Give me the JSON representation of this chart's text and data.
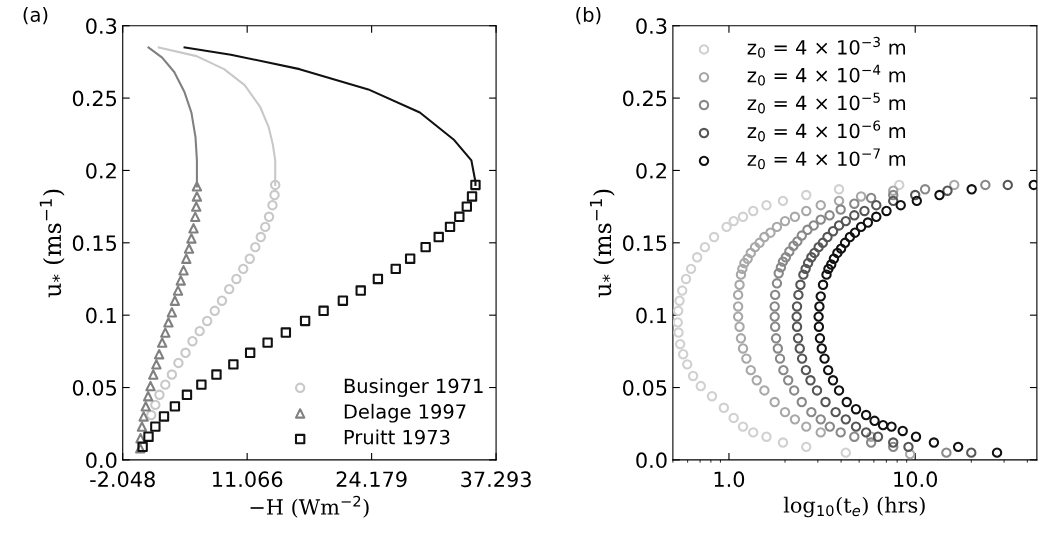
{
  "chart_data": [
    {
      "type": "scatter",
      "annotations": [
        "(a)"
      ],
      "xlabel": "−H (Wm$^{−2}$)",
      "ylabel": "u$_{*}$ (ms$^{−1}$)",
      "xlim": [
        -2.048,
        37.293
      ],
      "xticks": [
        -2.048,
        11.066,
        24.179,
        37.293
      ],
      "ylim": [
        0,
        0.3
      ],
      "yticks": [
        {
          "value": 0,
          "label": "0.0"
        },
        0.05,
        0.1,
        0.15,
        0.2,
        0.25,
        0.3
      ],
      "grid": false,
      "legend": "bottom right",
      "series": [
        {
          "name": "Businger 1971",
          "color": "#c8c8c8",
          "marker": "circle",
          "x": [
            14.02,
            13.95,
            13.73,
            13.37,
            12.97,
            12.5,
            11.92,
            11.34,
            10.65,
            9.93,
            9.17,
            8.41,
            7.65,
            6.85,
            6.06,
            5.3,
            4.57,
            3.82,
            3.13,
            2.44,
            1.82,
            1.39,
            0.96
          ],
          "values": [
            0.19,
            0.183,
            0.176,
            0.168,
            0.161,
            0.154,
            0.147,
            0.139,
            0.132,
            0.125,
            0.118,
            0.11,
            0.103,
            0.096,
            0.089,
            0.082,
            0.074,
            0.067,
            0.059,
            0.052,
            0.045,
            0.038,
            0.031
          ]
        },
        {
          "name": "Delage 1997",
          "color": "#808080",
          "marker": "triangle",
          "x": [
            5.77,
            5.77,
            5.7,
            5.59,
            5.41,
            5.19,
            4.94,
            4.65,
            4.36,
            4.07,
            3.78,
            3.45,
            3.13,
            2.77,
            2.44,
            2.11,
            1.79,
            1.5,
            1.17,
            0.88,
            0.63,
            0.38,
            0.16,
            -0.02,
            -0.17,
            -0.2
          ],
          "values": [
            0.189,
            0.182,
            0.175,
            0.168,
            0.16,
            0.153,
            0.146,
            0.139,
            0.131,
            0.124,
            0.117,
            0.11,
            0.102,
            0.095,
            0.088,
            0.081,
            0.073,
            0.066,
            0.059,
            0.051,
            0.044,
            0.037,
            0.03,
            0.023,
            0.015,
            0.008
          ]
        },
        {
          "name": "Pruitt 1973",
          "color": "#111111",
          "marker": "square",
          "x": [
            35.12,
            34.76,
            34.21,
            33.42,
            32.44,
            31.25,
            29.87,
            28.24,
            26.72,
            24.84,
            23.03,
            21.15,
            19.12,
            17.17,
            15.14,
            13.22,
            11.38,
            9.61,
            7.83,
            6.24,
            4.72,
            3.45,
            2.3,
            1.39,
            0.67,
            0.05
          ],
          "values": [
            0.19,
            0.182,
            0.175,
            0.168,
            0.161,
            0.154,
            0.147,
            0.139,
            0.132,
            0.125,
            0.117,
            0.11,
            0.103,
            0.096,
            0.088,
            0.081,
            0.074,
            0.066,
            0.059,
            0.052,
            0.045,
            0.037,
            0.03,
            0.023,
            0.016,
            0.009
          ]
        },
        {
          "type": "line",
          "color": "#c8c8c8",
          "marker": "none",
          "x": [
            14.02,
            14.02,
            13.77,
            13.33,
            12.43,
            10.8,
            8.63,
            5.73,
            1.75
          ],
          "values": [
            0.19,
            0.207,
            0.218,
            0.23,
            0.244,
            0.259,
            0.27,
            0.279,
            0.285
          ]
        },
        {
          "type": "line",
          "color": "#808080",
          "marker": "none",
          "x": [
            5.77,
            5.77,
            5.62,
            5.19,
            4.47,
            3.38,
            2.11,
            0.67
          ],
          "values": [
            0.189,
            0.207,
            0.223,
            0.24,
            0.254,
            0.268,
            0.278,
            0.285
          ]
        },
        {
          "type": "line",
          "color": "#111111",
          "marker": "none",
          "x": [
            35.12,
            35.12,
            34.69,
            32.88,
            29.26,
            23.83,
            16.59,
            9.35,
            4.47
          ],
          "values": [
            0.19,
            0.192,
            0.207,
            0.221,
            0.24,
            0.256,
            0.27,
            0.28,
            0.285
          ]
        }
      ]
    },
    {
      "type": "scatter",
      "annotations": [
        "(b)"
      ],
      "xlabel": "log$_{10}$(t$_{e}$) (hrs)",
      "ylabel": "u$_{*}$ (ms$^{−1}$)",
      "log": "x",
      "xlim": [
        0.5,
        45
      ],
      "xticks": [
        {
          "value": 1,
          "label": "1.0"
        },
        {
          "value": 10,
          "label": "10.0"
        }
      ],
      "ylim": [
        0,
        0.3
      ],
      "yticks": [
        {
          "value": 0,
          "label": "0.0"
        },
        0.05,
        0.1,
        0.15,
        0.2,
        0.25,
        0.3
      ],
      "grid": false,
      "legend": "top left",
      "marker": "circle",
      "series": [
        {
          "name": "z$_{0}$ = 4 × 10$^{−3}$ m",
          "color": "#d0d0d0",
          "x": [
            8.21,
            3.9,
            2.6,
            1.95,
            1.59,
            1.35,
            1.19,
            1.06,
            0.971,
            0.832,
            0.743,
            0.675,
            0.626,
            0.588,
            0.561,
            0.543,
            0.534,
            0.531,
            0.536,
            0.547,
            0.568,
            0.597,
            0.642,
            0.706,
            0.811,
            0.939,
            1.06,
            1.19,
            1.35,
            1.59,
            1.95,
            2.6,
            4.24
          ],
          "values": [
            0.19,
            0.187,
            0.183,
            0.179,
            0.176,
            0.172,
            0.168,
            0.165,
            0.161,
            0.154,
            0.147,
            0.14,
            0.132,
            0.125,
            0.117,
            0.11,
            0.103,
            0.095,
            0.088,
            0.08,
            0.073,
            0.066,
            0.058,
            0.051,
            0.044,
            0.036,
            0.029,
            0.023,
            0.019,
            0.016,
            0.012,
            0.009,
            0.005
          ]
        },
        {
          "name": "z$_{0}$ = 4 × 10$^{−4}$ m",
          "color": "#a8a8a8",
          "x": [
            16.2,
            7.62,
            5.12,
            3.9,
            3.11,
            2.6,
            2.26,
            2.0,
            1.81,
            1.67,
            1.55,
            1.46,
            1.38,
            1.31,
            1.26,
            1.21,
            1.18,
            1.16,
            1.14,
            1.12,
            1.12,
            1.12,
            1.14,
            1.16,
            1.19,
            1.24,
            1.31,
            1.41,
            1.55,
            1.76,
            2.0,
            2.26,
            2.6,
            3.11,
            5.8,
            9.39
          ],
          "values": [
            0.19,
            0.186,
            0.182,
            0.179,
            0.176,
            0.172,
            0.168,
            0.165,
            0.161,
            0.157,
            0.154,
            0.15,
            0.147,
            0.143,
            0.139,
            0.136,
            0.132,
            0.128,
            0.121,
            0.114,
            0.106,
            0.099,
            0.092,
            0.084,
            0.077,
            0.07,
            0.062,
            0.055,
            0.048,
            0.04,
            0.033,
            0.028,
            0.023,
            0.019,
            0.016,
            0.004
          ]
        },
        {
          "name": "z$_{0}$ = 4 × 10$^{−5}$ m",
          "color": "#888888",
          "x": [
            23.8,
            11.3,
            7.62,
            5.8,
            4.71,
            3.98,
            3.47,
            3.11,
            2.85,
            2.64,
            2.46,
            2.33,
            2.22,
            2.11,
            2.02,
            1.95,
            1.9,
            1.85,
            1.81,
            1.77,
            1.76,
            1.76,
            1.77,
            1.79,
            1.83,
            1.88,
            1.96,
            2.08,
            2.24,
            2.46,
            2.77,
            3.11,
            3.48,
            3.98,
            4.71,
            5.8,
            7.62,
            14.7
          ],
          "values": [
            0.19,
            0.187,
            0.183,
            0.181,
            0.177,
            0.173,
            0.169,
            0.166,
            0.162,
            0.159,
            0.155,
            0.151,
            0.148,
            0.144,
            0.14,
            0.137,
            0.133,
            0.129,
            0.122,
            0.114,
            0.106,
            0.099,
            0.092,
            0.084,
            0.077,
            0.07,
            0.062,
            0.055,
            0.048,
            0.04,
            0.033,
            0.028,
            0.023,
            0.019,
            0.016,
            0.012,
            0.009,
            0.005
          ]
        },
        {
          "name": "z$_{0}$ = 4 × 10$^{−6}$ m",
          "color": "#555555",
          "x": [
            31.4,
            14.9,
            10.0,
            7.62,
            6.18,
            5.34,
            4.71,
            4.24,
            3.9,
            3.62,
            3.38,
            3.19,
            3.03,
            2.88,
            2.77,
            2.66,
            2.58,
            2.51,
            2.42,
            2.36,
            2.32,
            2.31,
            2.32,
            2.35,
            2.4,
            2.47,
            2.59,
            2.74,
            2.97,
            3.3,
            3.74,
            4.24,
            4.81,
            5.45,
            6.31,
            7.62,
            9.2,
            20.0
          ],
          "values": [
            0.19,
            0.186,
            0.183,
            0.179,
            0.176,
            0.172,
            0.169,
            0.165,
            0.162,
            0.158,
            0.154,
            0.15,
            0.147,
            0.143,
            0.14,
            0.136,
            0.132,
            0.128,
            0.121,
            0.114,
            0.106,
            0.099,
            0.092,
            0.084,
            0.077,
            0.07,
            0.062,
            0.055,
            0.048,
            0.04,
            0.033,
            0.028,
            0.023,
            0.019,
            0.016,
            0.012,
            0.009,
            0.005
          ]
        },
        {
          "name": "z$_{0}$ = 4 × 10$^{−7}$ m",
          "color": "#111111",
          "x": [
            43.3,
            20.1,
            13.5,
            10.2,
            8.36,
            7.01,
            6.18,
            5.57,
            5.12,
            4.75,
            4.46,
            4.2,
            4.0,
            3.82,
            3.66,
            3.54,
            3.42,
            3.34,
            3.2,
            3.11,
            3.06,
            3.03,
            3.04,
            3.08,
            3.15,
            3.26,
            3.41,
            3.62,
            3.9,
            4.29,
            4.81,
            5.45,
            6.05,
            6.72,
            7.46,
            8.57,
            10.1,
            12.6,
            17.0,
            27.5
          ],
          "values": [
            0.19,
            0.187,
            0.183,
            0.179,
            0.176,
            0.172,
            0.168,
            0.164,
            0.161,
            0.157,
            0.154,
            0.15,
            0.146,
            0.143,
            0.139,
            0.135,
            0.132,
            0.128,
            0.121,
            0.113,
            0.106,
            0.099,
            0.092,
            0.084,
            0.077,
            0.07,
            0.062,
            0.055,
            0.048,
            0.04,
            0.035,
            0.031,
            0.027,
            0.024,
            0.023,
            0.02,
            0.016,
            0.012,
            0.009,
            0.005
          ]
        }
      ]
    }
  ]
}
